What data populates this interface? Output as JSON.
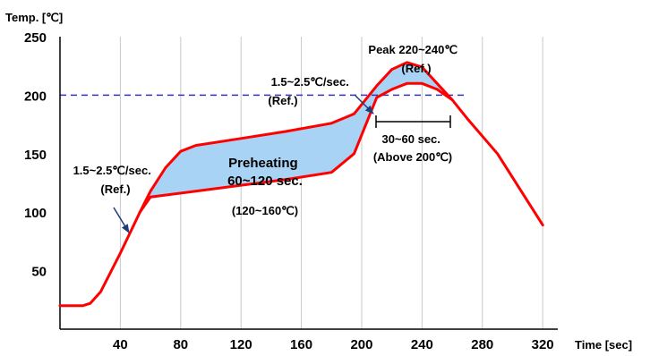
{
  "chart_data": {
    "type": "line",
    "ylabel": "Temp. [℃]",
    "xlabel": "Time [sec]",
    "xlim": [
      0,
      330
    ],
    "ylim": [
      0,
      250
    ],
    "x_ticks": [
      40,
      80,
      120,
      160,
      200,
      240,
      280,
      320
    ],
    "y_ticks": [
      50,
      100,
      150,
      200,
      250
    ],
    "grid": "vertical",
    "reference_line": {
      "y": 200,
      "style": "dashed",
      "color": "#3333cc"
    },
    "series": [
      {
        "role": "upper profile",
        "color": "#ff0000",
        "points": [
          [
            0,
            20
          ],
          [
            15,
            20
          ],
          [
            20,
            22
          ],
          [
            27,
            32
          ],
          [
            40,
            65
          ],
          [
            53,
            100
          ],
          [
            60,
            118
          ],
          [
            70,
            138
          ],
          [
            80,
            152
          ],
          [
            90,
            157
          ],
          [
            120,
            163
          ],
          [
            150,
            169
          ],
          [
            180,
            176
          ],
          [
            195,
            184
          ],
          [
            210,
            208
          ],
          [
            220,
            222
          ],
          [
            230,
            228
          ],
          [
            240,
            224
          ],
          [
            250,
            210
          ],
          [
            260,
            196
          ],
          [
            270,
            180
          ],
          [
            290,
            150
          ],
          [
            320,
            89
          ]
        ]
      },
      {
        "role": "lower profile",
        "color": "#ff0000",
        "points": [
          [
            53,
            100
          ],
          [
            60,
            113
          ],
          [
            90,
            118
          ],
          [
            120,
            123
          ],
          [
            150,
            128
          ],
          [
            180,
            134
          ],
          [
            195,
            150
          ],
          [
            210,
            198
          ],
          [
            220,
            205
          ],
          [
            230,
            210
          ],
          [
            240,
            210
          ],
          [
            250,
            205
          ],
          [
            260,
            196
          ]
        ]
      }
    ],
    "annotations": {
      "left_rate": [
        "1.5~2.5℃/sec.",
        "(Ref.)"
      ],
      "preheat": [
        "Preheating",
        "60~120 sec."
      ],
      "preheat_range": "(120~160℃)",
      "right_rate": [
        "1.5~2.5℃/sec.",
        "(Ref.)"
      ],
      "peak": [
        "Peak 220~240℃",
        "(Ref.)"
      ],
      "above": [
        "30~60 sec.",
        "(Above 200℃)"
      ]
    }
  },
  "colors": {
    "profile": "#ff0000",
    "fill": "#a9d3f5",
    "reference": "#3333cc",
    "arrow": "#1f3d7a",
    "grid": "#c8c8c8",
    "text": "#000000"
  }
}
